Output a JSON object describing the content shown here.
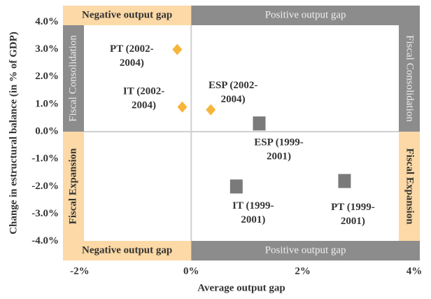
{
  "chart_data": {
    "type": "scatter",
    "x_label": "Average output gap",
    "y_label": "Change in estructural balance (in % of GDP)",
    "xlim": [
      -2.3,
      4.1
    ],
    "ylim": [
      -4.7,
      4.6
    ],
    "xticks": [
      {
        "value": -2,
        "label": "-2%"
      },
      {
        "value": 0,
        "label": "0%"
      },
      {
        "value": 2,
        "label": "2%"
      },
      {
        "value": 4,
        "label": "4%"
      }
    ],
    "yticks": [
      {
        "value": 4,
        "label": "4.0%"
      },
      {
        "value": 3,
        "label": "3.0%"
      },
      {
        "value": 2,
        "label": "2.0%"
      },
      {
        "value": 1,
        "label": "1.0%"
      },
      {
        "value": 0,
        "label": "0.0%"
      },
      {
        "value": -1,
        "label": "-1.0%"
      },
      {
        "value": -2,
        "label": "-2.0%"
      },
      {
        "value": -3,
        "label": "-3.0%"
      },
      {
        "value": -4,
        "label": "-4.0%"
      }
    ],
    "bands": {
      "negative": "Negative output gap",
      "positive": "Positive output gap",
      "consolidation": "Fiscal Consolidation",
      "expansion": "Fiscal Expansion"
    },
    "series": [
      {
        "marker": "diamond",
        "color": "#f7b53a",
        "x": [
          -0.25,
          -0.16,
          0.35
        ],
        "values": [
          3.0,
          0.9,
          0.8
        ],
        "labels": [
          [
            "PT (2002-",
            "2004)"
          ],
          [
            "IT (2002-",
            "2004)"
          ],
          [
            "ESP (2002-",
            "2004)"
          ]
        ]
      },
      {
        "marker": "square",
        "color": "#7a7a7a",
        "x": [
          1.22,
          0.81,
          2.75
        ],
        "values": [
          0.3,
          -2.0,
          -1.8
        ],
        "labels": [
          [
            "ESP (1999-",
            "2001)"
          ],
          [
            "IT (1999-",
            "2001)"
          ],
          [
            "PT (1999-",
            "2001)"
          ]
        ]
      }
    ]
  }
}
